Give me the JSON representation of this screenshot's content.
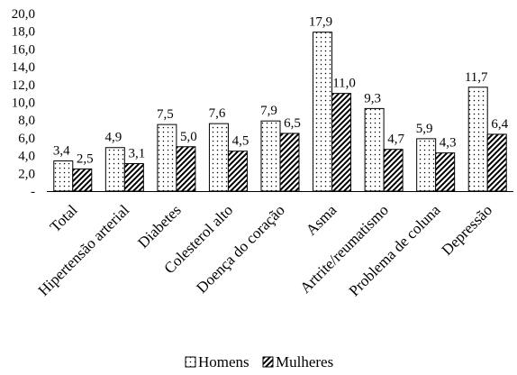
{
  "chart_data": {
    "type": "bar",
    "title": "",
    "xlabel": "",
    "ylabel": "",
    "ylim": [
      0,
      20
    ],
    "yticks": [
      "-",
      "2,0",
      "4,0",
      "6,0",
      "8,0",
      "10,0",
      "12,0",
      "14,0",
      "16,0",
      "18,0",
      "20,0"
    ],
    "grid": false,
    "legend_position": "bottom",
    "categories": [
      "Total",
      "Hipertensão arterial",
      "Diabetes",
      "Colesterol alto",
      "Doença do coração",
      "Asma",
      "Artrite/reumatismo",
      "Problema de coluna",
      "Depressão"
    ],
    "series": [
      {
        "name": "Homens",
        "pattern": "dots",
        "values": [
          3.4,
          4.9,
          7.5,
          7.6,
          7.9,
          17.9,
          9.3,
          5.9,
          11.7
        ],
        "labels": [
          "3,4",
          "4,9",
          "7,5",
          "7,6",
          "7,9",
          "17,9",
          "9,3",
          "5,9",
          "11,7"
        ]
      },
      {
        "name": "Mulheres",
        "pattern": "diagonal-hatch",
        "values": [
          2.5,
          3.1,
          5.0,
          4.5,
          6.5,
          11.0,
          4.7,
          4.3,
          6.4
        ],
        "labels": [
          "2,5",
          "3,1",
          "5,0",
          "4,5",
          "6,5",
          "11,0",
          "4,7",
          "4,3",
          "6,4"
        ]
      }
    ],
    "colors": {
      "bar_fill": "#ffffff",
      "ink": "#000000"
    }
  }
}
